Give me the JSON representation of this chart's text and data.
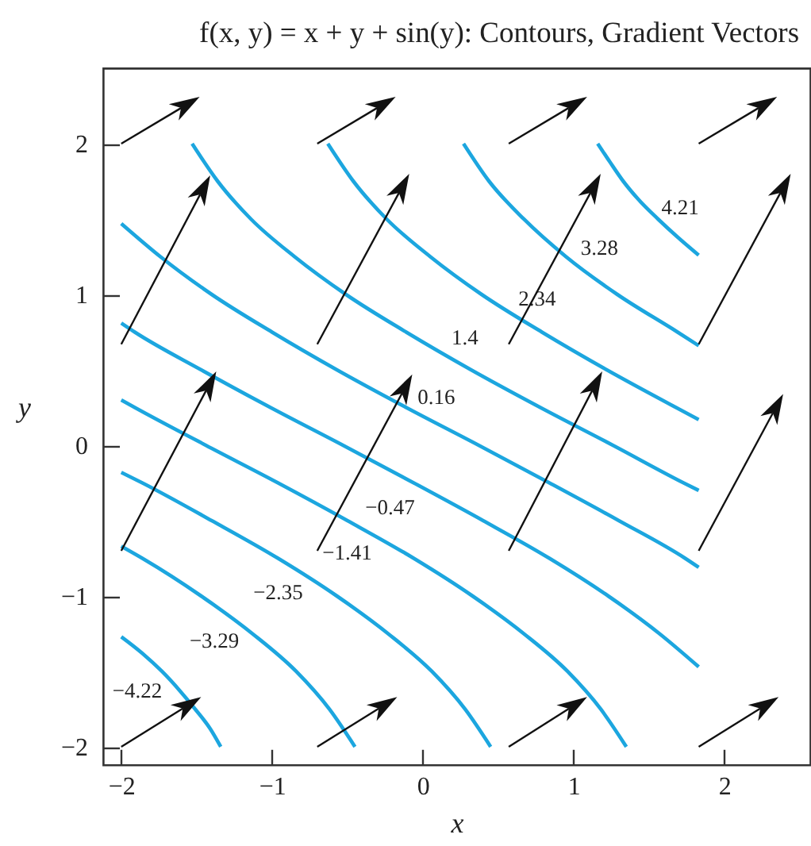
{
  "chart_data": {
    "type": "line",
    "title": "f(x, y) = x + y + sin(y): Contours, Gradient Vectors",
    "xlabel": "x",
    "ylabel": "y",
    "xlim": [
      -2.12,
      2.57
    ],
    "ylim": [
      -2.12,
      2.5
    ],
    "xticks": [
      -2,
      -1,
      0,
      1,
      2
    ],
    "yticks": [
      -2,
      -1,
      0,
      1,
      2
    ],
    "series": [
      {
        "name": "−4.22",
        "color": "#1ca6df",
        "x": [
          -2,
          -1.86,
          -1.73,
          -1.61,
          -1.51,
          -1.41,
          -1.34
        ],
        "values": [
          -1.27,
          -1.38,
          -1.5,
          -1.63,
          -1.75,
          -1.88,
          -2
        ]
      },
      {
        "name": "−3.29",
        "color": "#1ca6df",
        "x": [
          -2,
          -1.86,
          -1.47,
          -1.13,
          -0.84,
          -0.62,
          -0.45
        ],
        "values": [
          -0.67,
          -0.75,
          -1,
          -1.25,
          -1.5,
          -1.75,
          -2
        ]
      },
      {
        "name": "−2.35",
        "color": "#1ca6df",
        "x": [
          -2,
          -1.86,
          -1.4,
          -0.96,
          -0.57,
          -0.23,
          0.06,
          0.28,
          0.45
        ],
        "values": [
          -0.18,
          -0.25,
          -0.5,
          -0.75,
          -1,
          -1.25,
          -1.5,
          -1.75,
          -2
        ]
      },
      {
        "name": "−1.41",
        "color": "#1ca6df",
        "x": [
          -2,
          -1.91,
          -1.44,
          -0.96,
          -0.5,
          -0.06,
          0.33,
          0.67,
          0.96,
          1.18,
          1.35
        ],
        "values": [
          0.3,
          0.25,
          0,
          -0.25,
          -0.5,
          -0.75,
          -1,
          -1.25,
          -1.5,
          -1.75,
          -2
        ]
      },
      {
        "name": "−0.47",
        "color": "#1ca6df",
        "x": [
          -2,
          -1.91,
          -1.47,
          -1.01,
          -0.53,
          -0.06,
          0.4,
          0.84,
          1.23,
          1.57,
          1.83
        ],
        "values": [
          0.81,
          0.75,
          0.5,
          0.25,
          0,
          -0.25,
          -0.5,
          -0.75,
          -1,
          -1.25,
          -1.47
        ]
      },
      {
        "name": "0.16",
        "color": "#1ca6df",
        "x": [
          -2,
          -1.74,
          -1.4,
          -1.0,
          -0.57,
          -0.11,
          0.37,
          0.84,
          1.3,
          1.74,
          1.83
        ],
        "values": [
          1.47,
          1.25,
          1,
          0.75,
          0.5,
          0.25,
          0,
          -0.25,
          -0.5,
          -0.75,
          -0.81
        ]
      },
      {
        "name": "1.4",
        "color": "#1ca6df",
        "x": [
          -1.53,
          -1.36,
          -1.14,
          -0.85,
          -0.51,
          -0.11,
          0.32,
          0.78,
          1.26,
          1.73,
          1.83
        ],
        "values": [
          2,
          1.75,
          1.5,
          1.25,
          1,
          0.75,
          0.5,
          0.25,
          0,
          -0.25,
          -0.3
        ]
      },
      {
        "name": "2.34",
        "color": "#1ca6df",
        "x": [
          -0.63,
          -0.46,
          -0.24,
          0.05,
          0.39,
          0.79,
          1.22,
          1.68,
          1.83
        ],
        "values": [
          2,
          1.75,
          1.5,
          1.25,
          1,
          0.75,
          0.5,
          0.25,
          0.17
        ]
      },
      {
        "name": "3.28",
        "color": "#1ca6df",
        "x": [
          0.27,
          0.44,
          0.67,
          0.95,
          1.29,
          1.69,
          1.83
        ],
        "values": [
          2,
          1.75,
          1.5,
          1.25,
          1,
          0.75,
          0.66
        ]
      },
      {
        "name": "4.21",
        "color": "#1ca6df",
        "x": [
          1.16,
          1.24,
          1.33,
          1.43,
          1.56,
          1.69,
          1.83
        ],
        "values": [
          2,
          1.88,
          1.75,
          1.63,
          1.5,
          1.38,
          1.26
        ]
      }
    ]
  }
}
